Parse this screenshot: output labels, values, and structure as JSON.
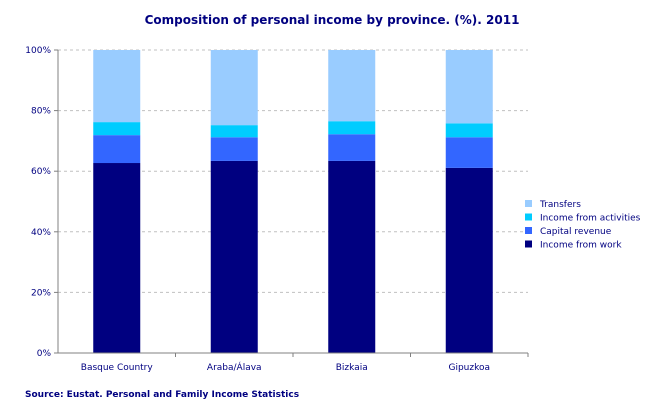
{
  "chart_data": {
    "type": "bar",
    "stacked": true,
    "title": "Composition of personal income by province. (%). 2011",
    "source": "Source: Eustat. Personal and Family Income Statistics",
    "categories": [
      "Basque Country",
      "Araba/Álava",
      "Bizkaia",
      "Gipuzkoa"
    ],
    "series": [
      {
        "name": "Income from work",
        "color": "#000080",
        "values": [
          62.7,
          63.4,
          63.4,
          61.1
        ]
      },
      {
        "name": "Capital revenue",
        "color": "#3366ff",
        "values": [
          9.2,
          7.8,
          8.8,
          10.1
        ]
      },
      {
        "name": "Income from activities",
        "color": "#00ccff",
        "values": [
          4.3,
          4.0,
          4.3,
          4.6
        ]
      },
      {
        "name": "Transfers",
        "color": "#99ccff",
        "values": [
          23.8,
          24.8,
          23.5,
          24.2
        ]
      }
    ],
    "ylim": [
      0,
      100
    ],
    "yticks": [
      "0%",
      "20%",
      "40%",
      "60%",
      "80%",
      "100%"
    ],
    "grid": true,
    "legend": "right",
    "title_color": "#000080"
  }
}
